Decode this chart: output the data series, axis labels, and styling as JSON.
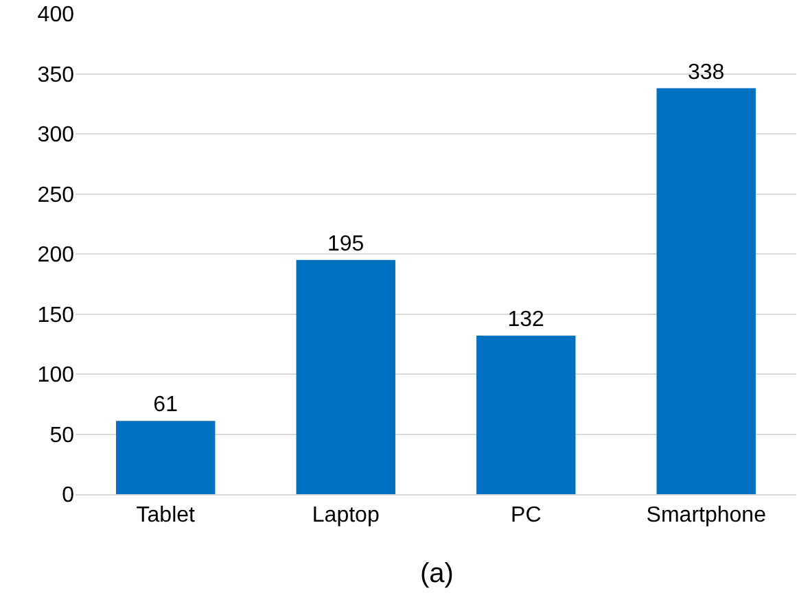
{
  "chart_data": {
    "type": "bar",
    "categories": [
      "Tablet",
      "Laptop",
      "PC",
      "Smartphone"
    ],
    "values": [
      61,
      195,
      132,
      338
    ],
    "color": "#0070c0",
    "ylim": [
      0,
      400
    ],
    "yticks": [
      0,
      50,
      100,
      150,
      200,
      250,
      300,
      350,
      400
    ],
    "grid": "y",
    "data_labels": true,
    "annotations": [
      "(a)"
    ]
  }
}
